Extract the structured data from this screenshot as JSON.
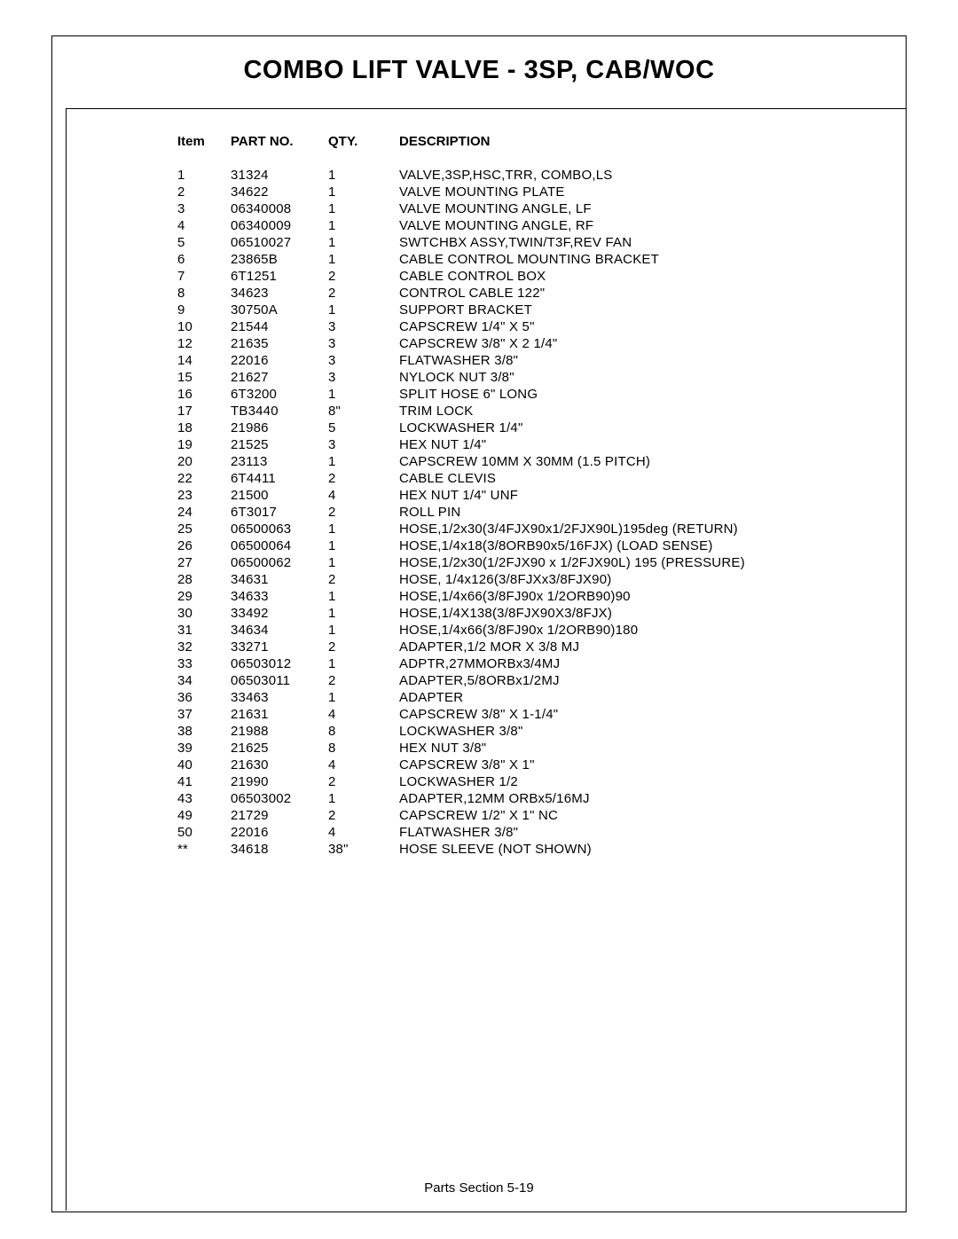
{
  "page": {
    "title": "COMBO LIFT VALVE - 3SP, CAB/WOC",
    "footer": "Parts Section   5-19"
  },
  "table": {
    "headers": {
      "item": "Item",
      "partno": "PART NO.",
      "qty": "QTY.",
      "description": "DESCRIPTION"
    },
    "rows": [
      {
        "item": "1",
        "partno": "31324",
        "qty": "1",
        "desc": "VALVE,3SP,HSC,TRR, COMBO,LS"
      },
      {
        "item": "2",
        "partno": "34622",
        "qty": "1",
        "desc": "VALVE MOUNTING PLATE"
      },
      {
        "item": "3",
        "partno": "06340008",
        "qty": "1",
        "desc": "VALVE MOUNTING ANGLE, LF"
      },
      {
        "item": "4",
        "partno": "06340009",
        "qty": "1",
        "desc": "VALVE MOUNTING ANGLE, RF"
      },
      {
        "item": "5",
        "partno": "06510027",
        "qty": "1",
        "desc": "SWTCHBX ASSY,TWIN/T3F,REV FAN"
      },
      {
        "item": "6",
        "partno": "23865B",
        "qty": "1",
        "desc": "CABLE CONTROL MOUNTING BRACKET"
      },
      {
        "item": "7",
        "partno": "6T1251",
        "qty": "2",
        "desc": "CABLE CONTROL BOX"
      },
      {
        "item": "8",
        "partno": "34623",
        "qty": "2",
        "desc": "CONTROL CABLE 122\""
      },
      {
        "item": "9",
        "partno": "30750A",
        "qty": "1",
        "desc": "SUPPORT BRACKET"
      },
      {
        "item": "10",
        "partno": "21544",
        "qty": "3",
        "desc": "CAPSCREW 1/4\" X 5\""
      },
      {
        "item": "12",
        "partno": "21635",
        "qty": "3",
        "desc": "CAPSCREW  3/8\" X 2 1/4\""
      },
      {
        "item": "14",
        "partno": "22016",
        "qty": "3",
        "desc": "FLATWASHER 3/8\""
      },
      {
        "item": "15",
        "partno": "21627",
        "qty": "3",
        "desc": "NYLOCK NUT 3/8\""
      },
      {
        "item": "16",
        "partno": "6T3200",
        "qty": "1",
        "desc": "SPLIT HOSE  6\" LONG"
      },
      {
        "item": "17",
        "partno": "TB3440",
        "qty": "8\"",
        "desc": "TRIM LOCK"
      },
      {
        "item": "18",
        "partno": "21986",
        "qty": "5",
        "desc": "LOCKWASHER  1/4\""
      },
      {
        "item": "19",
        "partno": "21525",
        "qty": "3",
        "desc": "HEX NUT 1/4\""
      },
      {
        "item": "20",
        "partno": "23113",
        "qty": "1",
        "desc": "CAPSCREW  10MM X 30MM (1.5 PITCH)"
      },
      {
        "item": "22",
        "partno": "6T4411",
        "qty": "2",
        "desc": "CABLE CLEVIS"
      },
      {
        "item": "23",
        "partno": "21500",
        "qty": "4",
        "desc": "HEX NUT 1/4\" UNF"
      },
      {
        "item": "24",
        "partno": "6T3017",
        "qty": "2",
        "desc": "ROLL PIN"
      },
      {
        "item": "25",
        "partno": "06500063",
        "qty": "1",
        "desc": "HOSE,1/2x30(3/4FJX90x1/2FJX90L)195deg (RETURN)"
      },
      {
        "item": "26",
        "partno": "06500064",
        "qty": "1",
        "desc": "HOSE,1/4x18(3/8ORB90x5/16FJX) (LOAD SENSE)"
      },
      {
        "item": "27",
        "partno": "06500062",
        "qty": "1",
        "desc": "HOSE,1/2x30(1/2FJX90 x 1/2FJX90L) 195 (PRESSURE)"
      },
      {
        "item": "28",
        "partno": "34631",
        "qty": "2",
        "desc": "HOSE, 1/4x126(3/8FJXx3/8FJX90)"
      },
      {
        "item": "29",
        "partno": "34633",
        "qty": "1",
        "desc": "HOSE,1/4x66(3/8FJ90x 1/2ORB90)90"
      },
      {
        "item": "30",
        "partno": "33492",
        "qty": "1",
        "desc": "HOSE,1/4X138(3/8FJX90X3/8FJX)"
      },
      {
        "item": "31",
        "partno": "34634",
        "qty": "1",
        "desc": "HOSE,1/4x66(3/8FJ90x 1/2ORB90)180"
      },
      {
        "item": "32",
        "partno": "33271",
        "qty": "2",
        "desc": "ADAPTER,1/2 MOR X 3/8 MJ"
      },
      {
        "item": "33",
        "partno": "06503012",
        "qty": "1",
        "desc": "ADPTR,27MMORBx3/4MJ"
      },
      {
        "item": "34",
        "partno": "06503011",
        "qty": "2",
        "desc": "ADAPTER,5/8ORBx1/2MJ"
      },
      {
        "item": "36",
        "partno": "33463",
        "qty": "1",
        "desc": "ADAPTER"
      },
      {
        "item": "37",
        "partno": "21631",
        "qty": "4",
        "desc": "CAPSCREW  3/8\" X 1-1/4\""
      },
      {
        "item": "38",
        "partno": "21988",
        "qty": "8",
        "desc": "LOCKWASHER  3/8\""
      },
      {
        "item": "39",
        "partno": "21625",
        "qty": "8",
        "desc": "HEX NUT 3/8\""
      },
      {
        "item": "40",
        "partno": "21630",
        "qty": "4",
        "desc": "CAPSCREW  3/8\" X 1\""
      },
      {
        "item": "41",
        "partno": "21990",
        "qty": "2",
        "desc": "LOCKWASHER  1/2"
      },
      {
        "item": "43",
        "partno": "06503002",
        "qty": "1",
        "desc": "ADAPTER,12MM ORBx5/16MJ"
      },
      {
        "item": "49",
        "partno": "21729",
        "qty": "2",
        "desc": "CAPSCREW  1/2\" X 1\" NC"
      },
      {
        "item": "50",
        "partno": "22016",
        "qty": "4",
        "desc": "FLATWASHER 3/8\""
      },
      {
        "item": "**",
        "partno": "34618",
        "qty": "38\"",
        "desc": "HOSE SLEEVE  (NOT SHOWN)"
      }
    ]
  }
}
